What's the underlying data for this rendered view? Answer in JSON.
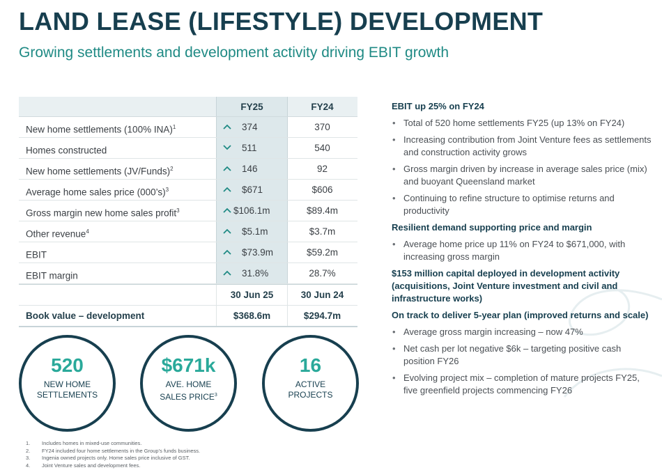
{
  "title": "LAND LEASE (LIFESTYLE) DEVELOPMENT",
  "subtitle": "Growing settlements and development activity driving EBIT growth",
  "table": {
    "col_fy25": "FY25",
    "col_fy24": "FY24",
    "rows": [
      {
        "label": "New home settlements (100% INA)",
        "sup": "1",
        "arrow": "up",
        "fy25": "374",
        "fy24": "370"
      },
      {
        "label": "Homes constructed",
        "sup": "",
        "arrow": "down",
        "fy25": "511",
        "fy24": "540"
      },
      {
        "label": "New home settlements (JV/Funds)",
        "sup": "2",
        "arrow": "up",
        "fy25": "146",
        "fy24": "92"
      },
      {
        "label": "Average home sales price (000’s)",
        "sup": "3",
        "arrow": "up",
        "fy25": "$671",
        "fy24": "$606"
      },
      {
        "label": "Gross margin new home sales profit",
        "sup": "3",
        "arrow": "up",
        "fy25": "$106.1m",
        "fy24": "$89.4m"
      },
      {
        "label": "Other revenue",
        "sup": "4",
        "arrow": "up",
        "fy25": "$5.1m",
        "fy24": "$3.7m"
      },
      {
        "label": "EBIT",
        "sup": "",
        "arrow": "up",
        "fy25": "$73.9m",
        "fy24": "$59.2m"
      },
      {
        "label": "EBIT margin",
        "sup": "",
        "arrow": "up",
        "fy25": "31.8%",
        "fy24": "28.7%"
      }
    ],
    "date_fy25": "30 Jun 25",
    "date_fy24": "30 Jun 24",
    "book_label": "Book value – development",
    "book_fy25": "$368.6m",
    "book_fy24": "$294.7m"
  },
  "circles": [
    {
      "value": "520",
      "line1": "NEW HOME",
      "line2": "SETTLEMENTS",
      "sup": ""
    },
    {
      "value": "$671k",
      "line1": "AVE. HOME",
      "line2": "SALES PRICE",
      "sup": "3"
    },
    {
      "value": "16",
      "line1": "ACTIVE",
      "line2": "PROJECTS",
      "sup": ""
    }
  ],
  "footnotes": [
    {
      "num": "1.",
      "text": "Includes homes in mixed-use communities."
    },
    {
      "num": "2.",
      "text": "FY24 included four home settlements in the Group’s funds business."
    },
    {
      "num": "3.",
      "text": "Ingenia owned projects only. Home sales price inclusive of GST."
    },
    {
      "num": "4.",
      "text": "Joint Venture sales and development fees."
    }
  ],
  "right": {
    "sections": [
      {
        "heading": "EBIT up 25% on FY24",
        "bullets": [
          "Total of 520 home settlements FY25 (up 13% on FY24)",
          "Increasing contribution from Joint Venture fees as settlements and construction activity grows",
          "Gross margin driven by increase in average sales price (mix) and buoyant Queensland market",
          "Continuing to refine structure to optimise returns and productivity"
        ]
      },
      {
        "heading": "Resilient demand supporting price and margin",
        "bullets": [
          "Average home price up 11% on FY24 to $671,000, with increasing gross margin"
        ]
      },
      {
        "heading": "$153 million capital deployed in development activity (acquisitions, Joint Venture investment and civil and infrastructure works)",
        "bullets": []
      },
      {
        "heading": "On track to deliver 5-year plan (improved returns and scale)",
        "bullets": [
          "Average gross margin increasing – now 47%",
          "Net cash per lot negative $6k – targeting positive cash position FY26",
          "Evolving project mix – completion of mature projects FY25, five greenfield projects commencing FY26"
        ]
      }
    ]
  },
  "colors": {
    "navy": "#173f4f",
    "teal": "#1f8a84",
    "circle_value": "#2aa99a",
    "fy25_column": "#dde8eb"
  },
  "icons": {
    "up": "chevron-up-icon",
    "down": "chevron-down-icon"
  }
}
